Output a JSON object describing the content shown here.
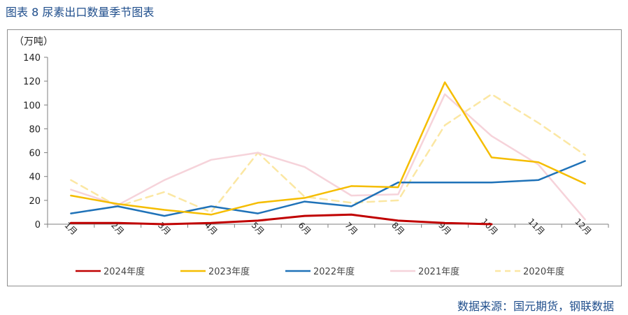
{
  "figure_title": "图表 8 尿素出口数量季节图表",
  "source": "数据来源：国元期货，钢联数据",
  "chart_data": {
    "type": "line",
    "unit_label": "（万吨）",
    "categories": [
      "1月",
      "2月",
      "3月",
      "4月",
      "5月",
      "6月",
      "7月",
      "8月",
      "9月",
      "10月",
      "11月",
      "12月"
    ],
    "ylim": [
      0,
      140
    ],
    "yticks": [
      0,
      20,
      40,
      60,
      80,
      100,
      120,
      140
    ],
    "grid": false,
    "legend_position": "bottom",
    "series": [
      {
        "name": "2024年度",
        "color": "#c00000",
        "dashed": false,
        "width": 3,
        "values": [
          1,
          1,
          0,
          1,
          3,
          7,
          8,
          3,
          1,
          0,
          null,
          null
        ]
      },
      {
        "name": "2023年度",
        "color": "#f5bd00",
        "dashed": false,
        "width": 2.5,
        "values": [
          24,
          17,
          12,
          8,
          18,
          22,
          32,
          31,
          119,
          56,
          52,
          34
        ]
      },
      {
        "name": "2022年度",
        "color": "#1f72b8",
        "dashed": false,
        "width": 2.5,
        "values": [
          9,
          15,
          7,
          15,
          9,
          19,
          15,
          35,
          35,
          35,
          37,
          53
        ]
      },
      {
        "name": "2021年度",
        "color": "#f6d3da",
        "dashed": false,
        "width": 2.5,
        "values": [
          29,
          16,
          37,
          54,
          60,
          48,
          24,
          25,
          109,
          74,
          50,
          4
        ]
      },
      {
        "name": "2020年度",
        "color": "#fbe7a3",
        "dashed": true,
        "width": 2.5,
        "values": [
          37,
          15,
          27,
          10,
          60,
          23,
          18,
          20,
          83,
          109,
          85,
          58
        ]
      }
    ]
  }
}
